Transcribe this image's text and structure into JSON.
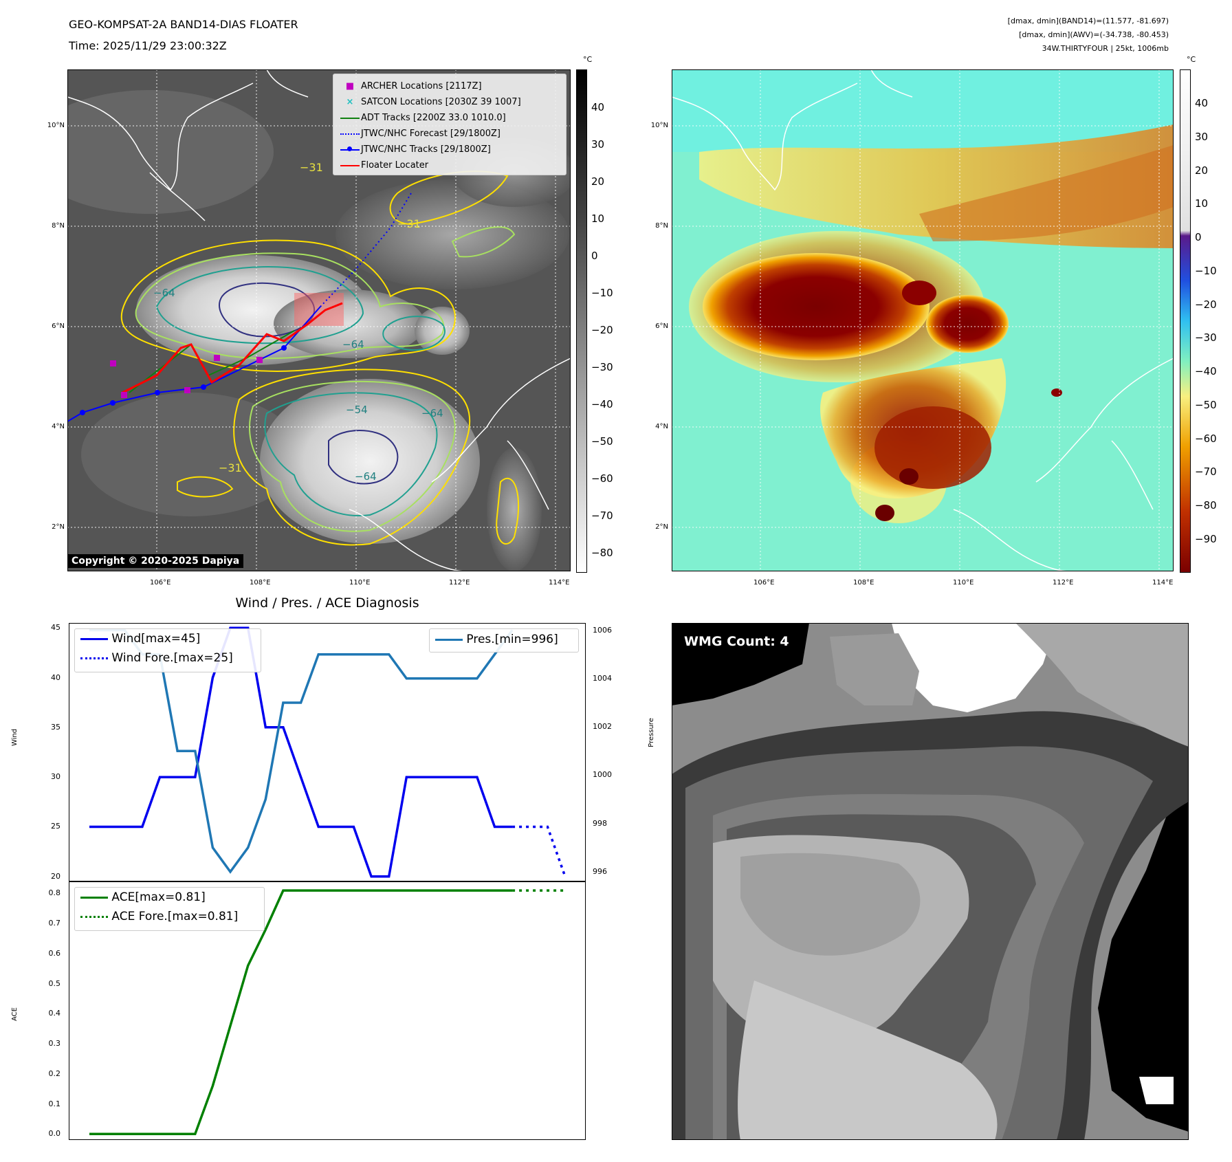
{
  "header": {
    "title": "GEO-KOMPSAT-2A BAND14-DIAS FLOATER",
    "time": "Time: 2025/11/29 23:00:32Z",
    "stats_band14": "[dmax, dmin](BAND14)=(11.577, -81.697)",
    "stats_awv": "[dmax, dmin](AWV)=(-34.738, -80.453)",
    "storm_info": "34W.THIRTYFOUR | 25kt, 1006mb"
  },
  "map_axes": {
    "lon_ticks": [
      "106°E",
      "108°E",
      "110°E",
      "112°E",
      "114°E"
    ],
    "lat_ticks": [
      "10°N",
      "8°N",
      "6°N",
      "4°N",
      "2°N"
    ]
  },
  "left_map": {
    "colorbar_unit": "°C",
    "colorbar_ticks": [
      "40",
      "30",
      "20",
      "10",
      "0",
      "−10",
      "−20",
      "−30",
      "−40",
      "−50",
      "−60",
      "−70",
      "−80"
    ],
    "contour_labels": [
      "−31",
      "−31",
      "−64",
      "−64",
      "−64",
      "−54",
      "−64",
      "−31"
    ],
    "copyright": "Copyright © 2020-2025 Dapiya",
    "legend": [
      {
        "label": "ARCHER Locations [2117Z]",
        "color": "#c000c0",
        "icon": "square-marker-icon"
      },
      {
        "label": "SATCON Locations [2030Z 39 1007]",
        "color": "#20c0c0",
        "icon": "x-marker-icon"
      },
      {
        "label": "ADT Tracks [2200Z 33.0 1010.0]",
        "color": "#108010",
        "icon": "solid-line-icon"
      },
      {
        "label": "JTWC/NHC Forecast [29/1800Z]",
        "color": "#0000ff",
        "icon": "dotted-line-icon"
      },
      {
        "label": "JTWC/NHC Tracks [29/1800Z]",
        "color": "#0000ff",
        "icon": "line-dot-icon"
      },
      {
        "label": "Floater Locater",
        "color": "#ff0000",
        "icon": "red-line-icon"
      }
    ]
  },
  "right_map": {
    "colorbar_unit": "°C",
    "colorbar_ticks": [
      "40",
      "30",
      "20",
      "10",
      "0",
      "−10",
      "−20",
      "−30",
      "−40",
      "−50",
      "−60",
      "−70",
      "−80",
      "−90"
    ]
  },
  "wmg": {
    "label": "WMG Count: 4"
  },
  "chart_data": [
    {
      "type": "line",
      "title": "Wind / Pres. / ACE Diagnosis",
      "ylabel": "Wind",
      "y2label": "Pressure",
      "ylim": [
        19.5,
        45.5
      ],
      "y2lim": [
        995.6,
        1006.3
      ],
      "yticks": [
        "20",
        "25",
        "30",
        "35",
        "40",
        "45"
      ],
      "y2ticks": [
        "996",
        "998",
        "1000",
        "1002",
        "1004",
        "1006"
      ],
      "x": [
        0,
        1,
        2,
        3,
        4,
        5,
        6,
        7,
        8,
        9,
        10,
        11,
        12,
        13,
        14,
        15,
        16,
        17,
        18,
        19,
        20,
        21,
        22,
        23,
        24,
        25,
        26,
        27
      ],
      "series": [
        {
          "name": "Wind[max=45]",
          "color": "#0000ee",
          "values": [
            25,
            25,
            25,
            25,
            30,
            30,
            30,
            40,
            45,
            45,
            35,
            35,
            30,
            25,
            25,
            25,
            20,
            20,
            30,
            30,
            30,
            30,
            30,
            25,
            25,
            null,
            null,
            null
          ]
        },
        {
          "name": "Wind Fore.[max=25]",
          "color": "#0000ee",
          "dashed": true,
          "values": [
            null,
            null,
            null,
            null,
            null,
            null,
            null,
            null,
            null,
            null,
            null,
            null,
            null,
            null,
            null,
            null,
            null,
            null,
            null,
            null,
            null,
            null,
            null,
            null,
            25,
            25,
            25,
            20
          ]
        },
        {
          "name": "Pres.[min=996]",
          "color": "#1f77b4",
          "axis": "right",
          "values": [
            1006,
            1006,
            1006,
            1005,
            1005,
            1001,
            1001,
            997,
            996,
            997,
            999,
            1003,
            1003,
            1005,
            1005,
            1005,
            1005,
            1005,
            1004,
            1004,
            1004,
            1004,
            1004,
            1005,
            1006,
            null,
            null,
            null
          ]
        }
      ],
      "legend_left": "upper-left",
      "legend_right": "upper-right"
    },
    {
      "type": "line",
      "ylabel": "ACE",
      "ylim": [
        -0.02,
        0.84
      ],
      "yticks": [
        "0.0",
        "0.1",
        "0.2",
        "0.3",
        "0.4",
        "0.5",
        "0.6",
        "0.7",
        "0.8"
      ],
      "x": [
        0,
        1,
        2,
        3,
        4,
        5,
        6,
        7,
        8,
        9,
        10,
        11,
        12,
        13,
        14,
        15,
        16,
        17,
        18,
        19,
        20,
        21,
        22,
        23,
        24,
        25,
        26,
        27
      ],
      "series": [
        {
          "name": "ACE[max=0.81]",
          "color": "#008000",
          "values": [
            0,
            0,
            0,
            0,
            0,
            0,
            0,
            0.16,
            0.36,
            0.56,
            0.68,
            0.81,
            0.81,
            0.81,
            0.81,
            0.81,
            0.81,
            0.81,
            0.81,
            0.81,
            0.81,
            0.81,
            0.81,
            0.81,
            0.81,
            null,
            null,
            null
          ]
        },
        {
          "name": "ACE Fore.[max=0.81]",
          "color": "#008000",
          "dashed": true,
          "values": [
            null,
            null,
            null,
            null,
            null,
            null,
            null,
            null,
            null,
            null,
            null,
            null,
            null,
            null,
            null,
            null,
            null,
            null,
            null,
            null,
            null,
            null,
            null,
            null,
            0.81,
            0.81,
            0.81,
            0.81
          ]
        }
      ],
      "legend": "upper-left"
    }
  ]
}
